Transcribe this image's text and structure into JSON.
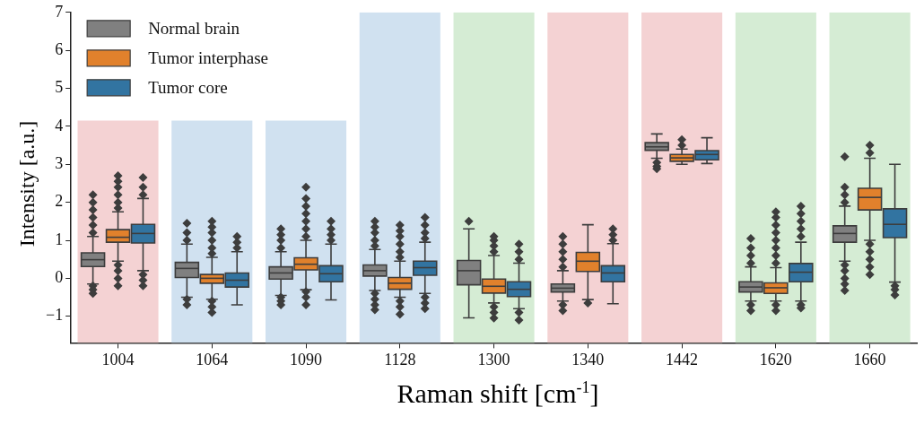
{
  "chart_data": {
    "type": "box",
    "xlabel": "Raman shift [cm$^{-1}$]",
    "ylabel": "Intensity [a.u.]",
    "categories": [
      "1004",
      "1064",
      "1090",
      "1128",
      "1300",
      "1340",
      "1442",
      "1620",
      "1660"
    ],
    "ylim": [
      -1.7,
      7
    ],
    "yticks": [
      -1,
      0,
      1,
      2,
      3,
      4,
      5,
      6,
      7
    ],
    "grid": false,
    "legend": "top left",
    "marker": "diamond",
    "series": [
      {
        "type": "bar",
        "colors": [
          "#f4d2d3",
          "#d0e1f0",
          "#d0e1f0",
          "#d0e1f0",
          "#d5ecd4",
          "#f4d2d3",
          "#f4d2d3",
          "#d5ecd4",
          "#d5ecd4"
        ],
        "base": [
          -1.7,
          -1.7,
          -1.7,
          -1.7,
          -1.7,
          -1.7,
          -1.7,
          -1.7,
          -1.7
        ],
        "values": [
          5.85,
          5.85,
          5.85,
          8.7,
          8.7,
          8.7,
          8.7,
          8.7,
          8.7
        ]
      },
      {
        "name": "Normal brain",
        "color": "#808080",
        "boxes": [
          {
            "low": -0.15,
            "q1": 0.31,
            "median": 0.49,
            "q3": 0.67,
            "high": 1.1,
            "outliers": [
              1.2,
              1.4,
              1.6,
              1.8,
              2.0,
              2.2,
              -0.2,
              -0.3,
              -0.4
            ]
          },
          {
            "low": -0.5,
            "q1": 0.02,
            "median": 0.26,
            "q3": 0.42,
            "high": 0.9,
            "outliers": [
              1.0,
              1.2,
              1.45,
              -0.55,
              -0.7
            ]
          },
          {
            "low": -0.45,
            "q1": -0.02,
            "median": 0.14,
            "q3": 0.3,
            "high": 0.7,
            "outliers": [
              0.8,
              1.0,
              1.15,
              1.3,
              -0.5,
              -0.6,
              -0.7
            ]
          },
          {
            "low": -0.32,
            "q1": 0.06,
            "median": 0.2,
            "q3": 0.35,
            "high": 0.76,
            "outliers": [
              0.85,
              1.0,
              1.2,
              1.35,
              1.5,
              -0.4,
              -0.55,
              -0.7,
              -0.83
            ]
          },
          {
            "low": -1.04,
            "q1": -0.17,
            "median": 0.2,
            "q3": 0.47,
            "high": 1.3,
            "outliers": [
              1.5
            ]
          },
          {
            "low": -0.6,
            "q1": -0.36,
            "median": -0.26,
            "q3": -0.15,
            "high": 0.2,
            "outliers": [
              0.3,
              0.5,
              0.7,
              0.9,
              1.1,
              -0.7,
              -0.85
            ]
          },
          {
            "low": 3.16,
            "q1": 3.37,
            "median": 3.46,
            "q3": 3.57,
            "high": 3.8,
            "outliers": [
              3.05,
              2.95,
              2.88
            ]
          },
          {
            "low": -0.6,
            "q1": -0.36,
            "median": -0.23,
            "q3": -0.09,
            "high": 0.3,
            "outliers": [
              0.4,
              0.6,
              0.8,
              1.05,
              -0.7,
              -0.85
            ]
          },
          {
            "low": 0.45,
            "q1": 0.95,
            "median": 1.18,
            "q3": 1.38,
            "high": 1.9,
            "outliers": [
              2.0,
              2.2,
              2.4,
              3.2,
              0.35,
              0.2,
              0.0,
              -0.15,
              -0.32
            ]
          }
        ]
      },
      {
        "name": "Tumor interphase",
        "color": "#e1812c",
        "boxes": [
          {
            "low": 0.45,
            "q1": 0.95,
            "median": 1.08,
            "q3": 1.28,
            "high": 1.75,
            "outliers": [
              1.85,
              2.0,
              2.2,
              2.4,
              2.55,
              2.7,
              0.35,
              0.2,
              0.0,
              -0.2
            ]
          },
          {
            "low": -0.55,
            "q1": -0.13,
            "median": 0.0,
            "q3": 0.1,
            "high": 0.55,
            "outliers": [
              0.65,
              0.8,
              1.0,
              1.2,
              1.35,
              1.5,
              -0.6,
              -0.75,
              -0.9
            ]
          },
          {
            "low": -0.3,
            "q1": 0.22,
            "median": 0.37,
            "q3": 0.54,
            "high": 1.0,
            "outliers": [
              1.1,
              1.3,
              1.5,
              1.7,
              1.9,
              2.1,
              2.4,
              -0.35,
              -0.5,
              -0.7
            ]
          },
          {
            "low": -0.5,
            "q1": -0.29,
            "median": -0.13,
            "q3": 0.02,
            "high": 0.45,
            "outliers": [
              0.55,
              0.7,
              0.9,
              1.1,
              1.25,
              1.4,
              -0.6,
              -0.75,
              -0.95
            ]
          },
          {
            "low": -0.65,
            "q1": -0.39,
            "median": -0.21,
            "q3": -0.02,
            "high": 0.6,
            "outliers": [
              0.7,
              0.85,
              1.0,
              1.1,
              -0.75,
              -0.9,
              -1.05
            ]
          },
          {
            "low": -0.56,
            "q1": 0.18,
            "median": 0.45,
            "q3": 0.68,
            "high": 1.41,
            "outliers": [
              -0.65
            ]
          },
          {
            "low": 3.0,
            "q1": 3.08,
            "median": 3.17,
            "q3": 3.26,
            "high": 3.4,
            "outliers": [
              3.5,
              3.65
            ]
          },
          {
            "low": -0.6,
            "q1": -0.4,
            "median": -0.25,
            "q3": -0.12,
            "high": 0.28,
            "outliers": [
              0.4,
              0.6,
              0.8,
              1.0,
              1.2,
              1.4,
              1.6,
              1.75,
              -0.7,
              -0.85
            ]
          },
          {
            "low": 1.0,
            "q1": 1.8,
            "median": 2.13,
            "q3": 2.37,
            "high": 3.16,
            "outliers": [
              3.3,
              3.5,
              0.9,
              0.7,
              0.5,
              0.3,
              0.1
            ]
          }
        ]
      },
      {
        "name": "Tumor core",
        "color": "#3274a1",
        "boxes": [
          {
            "low": 0.2,
            "q1": 0.93,
            "median": 1.18,
            "q3": 1.42,
            "high": 2.1,
            "outliers": [
              2.2,
              2.4,
              2.65,
              0.1,
              -0.05,
              -0.2
            ]
          },
          {
            "low": -0.7,
            "q1": -0.23,
            "median": -0.05,
            "q3": 0.14,
            "high": 0.7,
            "outliers": [
              0.8,
              0.95,
              1.1
            ]
          },
          {
            "low": -0.57,
            "q1": -0.09,
            "median": 0.12,
            "q3": 0.33,
            "high": 0.9,
            "outliers": [
              1.0,
              1.15,
              1.3,
              1.5
            ]
          },
          {
            "low": -0.4,
            "q1": 0.08,
            "median": 0.28,
            "q3": 0.45,
            "high": 0.95,
            "outliers": [
              1.05,
              1.2,
              1.4,
              1.6,
              -0.5,
              -0.65,
              -0.8
            ]
          },
          {
            "low": -0.8,
            "q1": -0.48,
            "median": -0.29,
            "q3": -0.09,
            "high": 0.4,
            "outliers": [
              0.5,
              0.7,
              0.9,
              -0.9,
              -1.1
            ]
          },
          {
            "low": -0.67,
            "q1": -0.09,
            "median": 0.14,
            "q3": 0.33,
            "high": 0.91,
            "outliers": [
              1.0,
              1.15,
              1.3
            ]
          },
          {
            "low": 3.02,
            "q1": 3.12,
            "median": 3.26,
            "q3": 3.36,
            "high": 3.7
          },
          {
            "low": -0.6,
            "q1": -0.09,
            "median": 0.16,
            "q3": 0.39,
            "high": 0.95,
            "outliers": [
              1.1,
              1.3,
              1.5,
              1.7,
              1.9,
              -0.7,
              -0.78
            ]
          },
          {
            "low": -0.1,
            "q1": 1.07,
            "median": 1.42,
            "q3": 1.83,
            "high": 3.0,
            "outliers": [
              -0.2,
              -0.3,
              -0.44
            ]
          }
        ]
      }
    ]
  }
}
